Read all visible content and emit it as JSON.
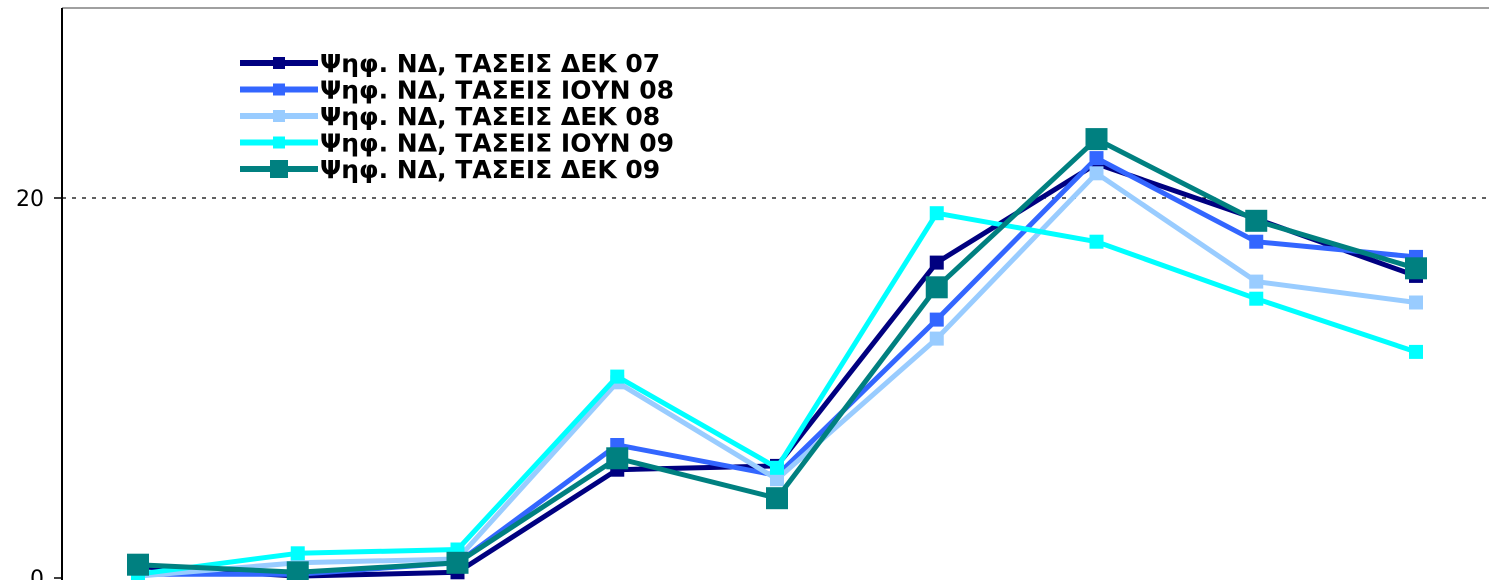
{
  "chart_data": {
    "type": "line",
    "title": "",
    "xlabel": "",
    "ylabel": "",
    "x": [
      1,
      2,
      3,
      4,
      5,
      6,
      7,
      8,
      9
    ],
    "ylim": [
      0,
      28
    ],
    "yticks": [
      0,
      20
    ],
    "grid": "dotted line at 20",
    "legend_position": "top-left",
    "series": [
      {
        "name": "Ψηφ. ΝΔ, ΤΑΣΕΙΣ ΔΕΚ 07",
        "color": "#000080",
        "marker": "small-square",
        "values": [
          0.6,
          0.1,
          0.3,
          5.7,
          5.9,
          16.6,
          21.8,
          18.9,
          15.9
        ]
      },
      {
        "name": "Ψηφ. ΝΔ, ΤΑΣΕΙΣ ΙΟΥΝ 08",
        "color": "#3366ff",
        "marker": "small-square",
        "values": [
          0.2,
          0.2,
          0.8,
          7.0,
          5.4,
          13.6,
          22.1,
          17.7,
          16.9
        ]
      },
      {
        "name": "Ψηφ. ΝΔ, ΤΑΣΕΙΣ ΔΕΚ 08",
        "color": "#99ccff",
        "marker": "small-square",
        "values": [
          0.1,
          0.8,
          1.0,
          10.3,
          5.2,
          12.6,
          21.3,
          15.6,
          14.5
        ]
      },
      {
        "name": "Ψηφ. ΝΔ, ΤΑΣΕΙΣ ΙΟΥΝ 09",
        "color": "#00ffff",
        "marker": "small-square",
        "values": [
          0.2,
          1.3,
          1.5,
          10.6,
          5.8,
          19.2,
          17.7,
          14.7,
          11.9
        ]
      },
      {
        "name": "Ψηφ. ΝΔ, ΤΑΣΕΙΣ ΔΕΚ 09",
        "color": "#008080",
        "marker": "large-square",
        "values": [
          0.7,
          0.3,
          0.8,
          6.3,
          4.2,
          15.3,
          23.1,
          18.8,
          16.3
        ]
      }
    ]
  }
}
